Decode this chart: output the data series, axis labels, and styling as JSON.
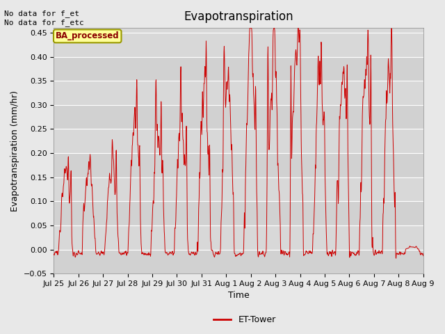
{
  "title": "Evapotranspiration",
  "ylabel": "Evapotranspiration (mm/hr)",
  "xlabel": "Time",
  "ylim": [
    -0.05,
    0.46
  ],
  "yticks": [
    -0.05,
    0.0,
    0.05,
    0.1,
    0.15,
    0.2,
    0.25,
    0.3,
    0.35,
    0.4,
    0.45
  ],
  "xtick_labels": [
    "Jul 25",
    "Jul 26",
    "Jul 27",
    "Jul 28",
    "Jul 29",
    "Jul 30",
    "Jul 31",
    "Aug 1",
    "Aug 2",
    "Aug 3",
    "Aug 4",
    "Aug 5",
    "Aug 6",
    "Aug 7",
    "Aug 8",
    "Aug 9"
  ],
  "annotation_text": "No data for f_et\nNo data for f_etc",
  "box_label": "BA_processed",
  "legend_label": "ET-Tower",
  "line_color": "#cc0000",
  "fig_bg_color": "#e8e8e8",
  "plot_bg_color": "#d8d8d8",
  "box_facecolor": "#ffff99",
  "box_edgecolor": "#999900",
  "title_fontsize": 12,
  "label_fontsize": 9,
  "tick_fontsize": 8,
  "annot_fontsize": 8
}
